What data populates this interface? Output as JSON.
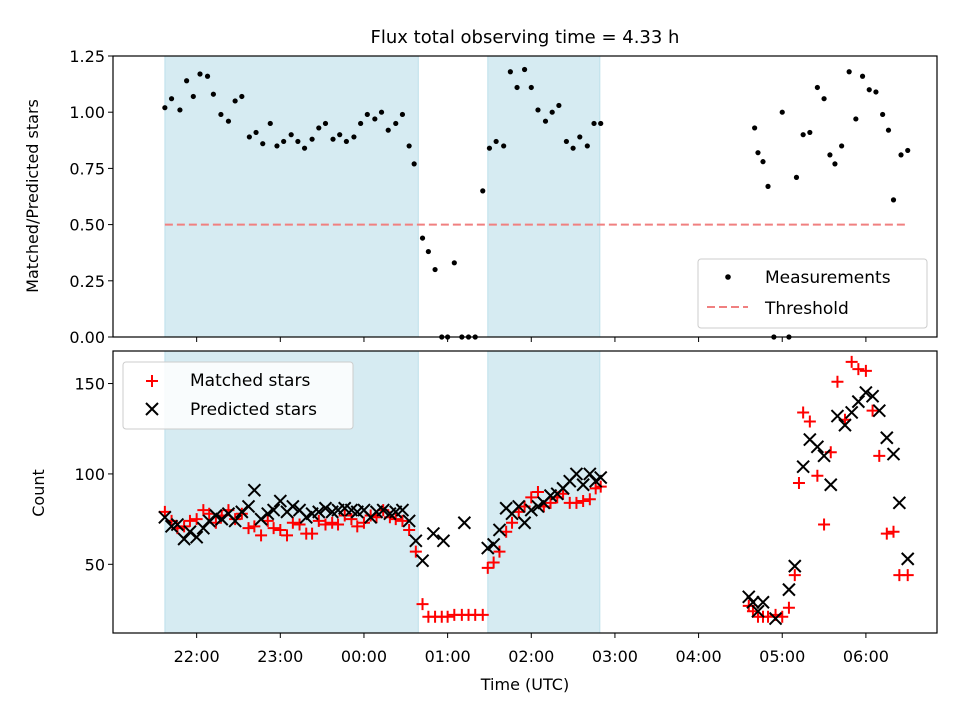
{
  "chart_data": [
    {
      "type": "scatter",
      "title": "Flux total observing time = 4.33 h",
      "ylabel": "Matched/Predicted stars",
      "x_unit": "hours since 21:00 UTC (axis tick labels below)",
      "ylim": [
        0,
        1.25
      ],
      "yticks": [
        "0.00",
        "0.25",
        "0.50",
        "0.75",
        "1.00",
        "1.25"
      ],
      "shaded_intervals": [
        [
          0.62,
          3.65
        ],
        [
          4.48,
          5.82
        ]
      ],
      "threshold": 0.5,
      "legend": {
        "position": "lower right",
        "entries": [
          "Measurements",
          "Threshold"
        ]
      },
      "series": [
        {
          "name": "Measurements",
          "x": [
            0.62,
            0.7,
            0.8,
            0.88,
            0.96,
            1.04,
            1.13,
            1.2,
            1.29,
            1.38,
            1.46,
            1.54,
            1.63,
            1.71,
            1.79,
            1.88,
            1.96,
            2.04,
            2.13,
            2.21,
            2.29,
            2.38,
            2.46,
            2.54,
            2.63,
            2.71,
            2.79,
            2.88,
            2.96,
            3.04,
            3.13,
            3.21,
            3.29,
            3.38,
            3.46,
            3.54,
            3.6,
            3.7,
            3.77,
            3.85,
            3.93,
            4.0,
            4.08,
            4.17,
            4.25,
            4.33,
            4.42,
            4.5,
            4.58,
            4.67,
            4.75,
            4.83,
            4.92,
            5.0,
            5.08,
            5.17,
            5.25,
            5.33,
            5.42,
            5.5,
            5.58,
            5.67,
            5.75,
            5.83,
            7.67,
            7.71,
            7.77,
            7.83,
            7.9,
            8.0,
            8.08,
            8.17,
            8.25,
            8.33,
            8.42,
            8.5,
            8.57,
            8.63,
            8.71,
            8.8,
            8.88,
            8.96,
            9.04,
            9.12,
            9.2,
            9.27,
            9.33,
            9.42,
            9.5
          ],
          "y": [
            1.02,
            1.06,
            1.01,
            1.14,
            1.07,
            1.17,
            1.16,
            1.08,
            0.99,
            0.96,
            1.05,
            1.07,
            0.89,
            0.91,
            0.86,
            0.95,
            0.85,
            0.87,
            0.9,
            0.87,
            0.84,
            0.88,
            0.93,
            0.95,
            0.88,
            0.9,
            0.87,
            0.89,
            0.95,
            0.99,
            0.97,
            1.0,
            0.92,
            0.95,
            0.99,
            0.85,
            0.77,
            0.44,
            0.38,
            0.3,
            0.0,
            0.0,
            0.33,
            0.0,
            0.0,
            0.0,
            0.65,
            0.84,
            0.87,
            0.85,
            1.18,
            1.11,
            1.19,
            1.11,
            1.01,
            0.96,
            1.0,
            1.03,
            0.87,
            0.84,
            0.89,
            0.85,
            0.95,
            0.95,
            0.93,
            0.82,
            0.78,
            0.67,
            0.0,
            1.0,
            0.0,
            0.71,
            0.9,
            0.91,
            1.11,
            1.06,
            0.81,
            0.77,
            0.85,
            1.18,
            0.97,
            1.16,
            1.1,
            1.09,
            0.99,
            0.92,
            0.61,
            0.81,
            0.83
          ]
        }
      ]
    },
    {
      "type": "scatter",
      "xlabel": "Time (UTC)",
      "ylabel": "Count",
      "ylim": [
        12,
        168
      ],
      "yticks": [
        "50",
        "100",
        "150"
      ],
      "xticks": [
        "22:00",
        "23:00",
        "00:00",
        "01:00",
        "02:00",
        "03:00",
        "04:00",
        "05:00",
        "06:00"
      ],
      "xlim_hours_since_2100": [
        0.0,
        9.85
      ],
      "shaded_intervals": [
        [
          0.62,
          3.65
        ],
        [
          4.48,
          5.82
        ]
      ],
      "legend": {
        "position": "upper left",
        "entries": [
          "Matched stars",
          "Predicted stars"
        ]
      },
      "series": [
        {
          "name": "Matched stars",
          "x": [
            0.62,
            0.7,
            0.77,
            0.85,
            0.92,
            1.0,
            1.08,
            1.15,
            1.23,
            1.3,
            1.38,
            1.46,
            1.54,
            1.62,
            1.69,
            1.77,
            1.85,
            1.92,
            2.0,
            2.08,
            2.15,
            2.23,
            2.31,
            2.38,
            2.46,
            2.54,
            2.62,
            2.69,
            2.77,
            2.85,
            2.92,
            3.0,
            3.08,
            3.15,
            3.23,
            3.31,
            3.38,
            3.46,
            3.54,
            3.62,
            3.7,
            3.77,
            3.85,
            3.93,
            4.0,
            4.08,
            4.17,
            4.25,
            4.33,
            4.42,
            4.48,
            4.55,
            4.62,
            4.7,
            4.77,
            4.85,
            4.92,
            5.0,
            5.08,
            5.15,
            5.23,
            5.31,
            5.38,
            5.46,
            5.54,
            5.62,
            5.7,
            5.77,
            5.83,
            7.6,
            7.65,
            7.71,
            7.77,
            7.83,
            7.92,
            8.0,
            8.08,
            8.15,
            8.2,
            8.25,
            8.33,
            8.42,
            8.5,
            8.58,
            8.66,
            8.75,
            8.83,
            8.91,
            9.0,
            9.08,
            9.16,
            9.25,
            9.33,
            9.4,
            9.5
          ],
          "y": [
            79,
            74,
            70,
            71,
            74,
            75,
            80,
            78,
            73,
            77,
            80,
            75,
            78,
            70,
            71,
            66,
            74,
            70,
            69,
            66,
            73,
            72,
            67,
            67,
            74,
            72,
            73,
            72,
            77,
            75,
            71,
            73,
            77,
            76,
            80,
            76,
            75,
            74,
            69,
            57,
            28,
            21,
            21,
            21,
            21,
            22,
            22,
            22,
            22,
            22,
            48,
            51,
            57,
            68,
            73,
            79,
            82,
            87,
            90,
            82,
            84,
            87,
            89,
            84,
            84,
            85,
            86,
            92,
            93,
            27,
            24,
            21,
            21,
            21,
            22,
            21,
            26,
            44,
            95,
            134,
            129,
            99,
            72,
            112,
            151,
            130,
            162,
            158,
            157,
            135,
            110,
            67,
            68,
            44,
            44
          ]
        },
        {
          "name": "Predicted stars",
          "x": [
            0.62,
            0.7,
            0.77,
            0.85,
            0.92,
            1.0,
            1.08,
            1.15,
            1.23,
            1.3,
            1.38,
            1.46,
            1.54,
            1.62,
            1.69,
            1.77,
            1.85,
            1.92,
            2.0,
            2.08,
            2.15,
            2.23,
            2.31,
            2.38,
            2.46,
            2.54,
            2.62,
            2.69,
            2.77,
            2.85,
            2.92,
            3.0,
            3.08,
            3.15,
            3.23,
            3.31,
            3.38,
            3.46,
            3.54,
            3.62,
            3.7,
            3.83,
            3.95,
            4.2,
            4.48,
            4.55,
            4.62,
            4.7,
            4.77,
            4.85,
            4.92,
            5.0,
            5.08,
            5.15,
            5.23,
            5.31,
            5.38,
            5.46,
            5.54,
            5.62,
            5.7,
            5.77,
            5.83,
            7.6,
            7.65,
            7.71,
            7.77,
            7.92,
            8.08,
            8.15,
            8.25,
            8.33,
            8.42,
            8.5,
            8.58,
            8.66,
            8.75,
            8.83,
            8.91,
            9.0,
            9.08,
            9.16,
            9.25,
            9.33,
            9.4,
            9.5
          ],
          "y": [
            76,
            71,
            72,
            64,
            68,
            65,
            70,
            74,
            77,
            75,
            78,
            74,
            79,
            82,
            91,
            75,
            78,
            80,
            85,
            79,
            82,
            80,
            76,
            78,
            79,
            81,
            79,
            80,
            81,
            80,
            79,
            80,
            76,
            79,
            80,
            78,
            79,
            80,
            74,
            63,
            52,
            67,
            63,
            73,
            59,
            61,
            69,
            81,
            78,
            82,
            73,
            80,
            82,
            84,
            88,
            89,
            92,
            96,
            100,
            94,
            100,
            96,
            98,
            32,
            29,
            24,
            29,
            20,
            36,
            49,
            104,
            119,
            115,
            110,
            94,
            132,
            127,
            134,
            140,
            145,
            143,
            135,
            120,
            111,
            84,
            53
          ]
        }
      ]
    }
  ]
}
